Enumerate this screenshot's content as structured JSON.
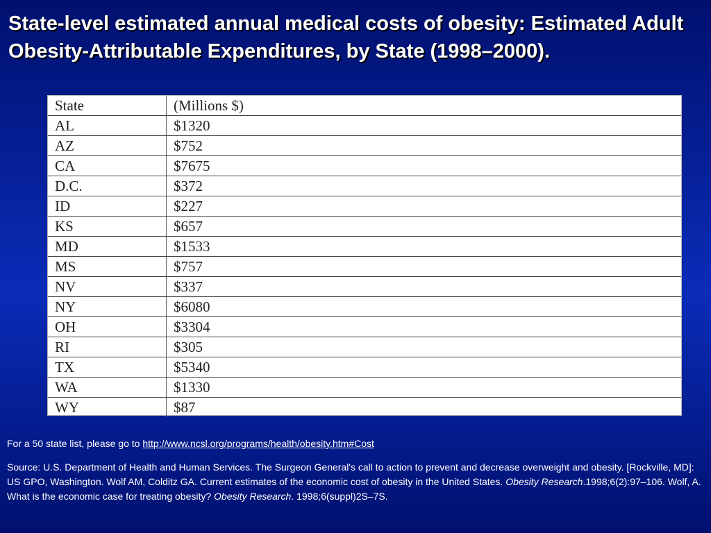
{
  "title": {
    "bold": "State-level estimated annual medical costs of obesity:",
    "rest": " Estimated Adult Obesity-Attributable Expenditures, by State (1998–2000)."
  },
  "table": {
    "headers": [
      "State",
      "(Millions $)"
    ],
    "rows": [
      [
        "AL",
        "$1320"
      ],
      [
        "AZ",
        "$752"
      ],
      [
        "CA",
        "$7675"
      ],
      [
        "D.C.",
        "$372"
      ],
      [
        "ID",
        "$227"
      ],
      [
        "KS",
        "$657"
      ],
      [
        "MD",
        "$1533"
      ],
      [
        "MS",
        "$757"
      ],
      [
        "NV",
        "$337"
      ],
      [
        "NY",
        "$6080"
      ],
      [
        "OH",
        "$3304"
      ],
      [
        "RI",
        "$305"
      ],
      [
        "TX",
        "$5340"
      ],
      [
        "WA",
        "$1330"
      ],
      [
        "WY",
        "$87"
      ]
    ]
  },
  "footer": {
    "link_prefix": "For a 50 state list, please go to ",
    "link_text": "http://www.ncsl.org/programs/health/obesity.htm#Cost",
    "source_1": "Source: U.S. Department of Health and Human Services. The Surgeon General's call to action to prevent and decrease overweight and obesity. [Rockville, MD]: US GPO, Washington. Wolf AM, Colditz GA. Current estimates of the economic cost of obesity in the United States. ",
    "source_journal_1": "Obesity Research",
    "source_2": ".1998;6(2):97–106. Wolf, A. What is the economic case for treating obesity? ",
    "source_journal_2": "Obesity Research",
    "source_3": ". 1998;6(suppl)2S–7S."
  }
}
